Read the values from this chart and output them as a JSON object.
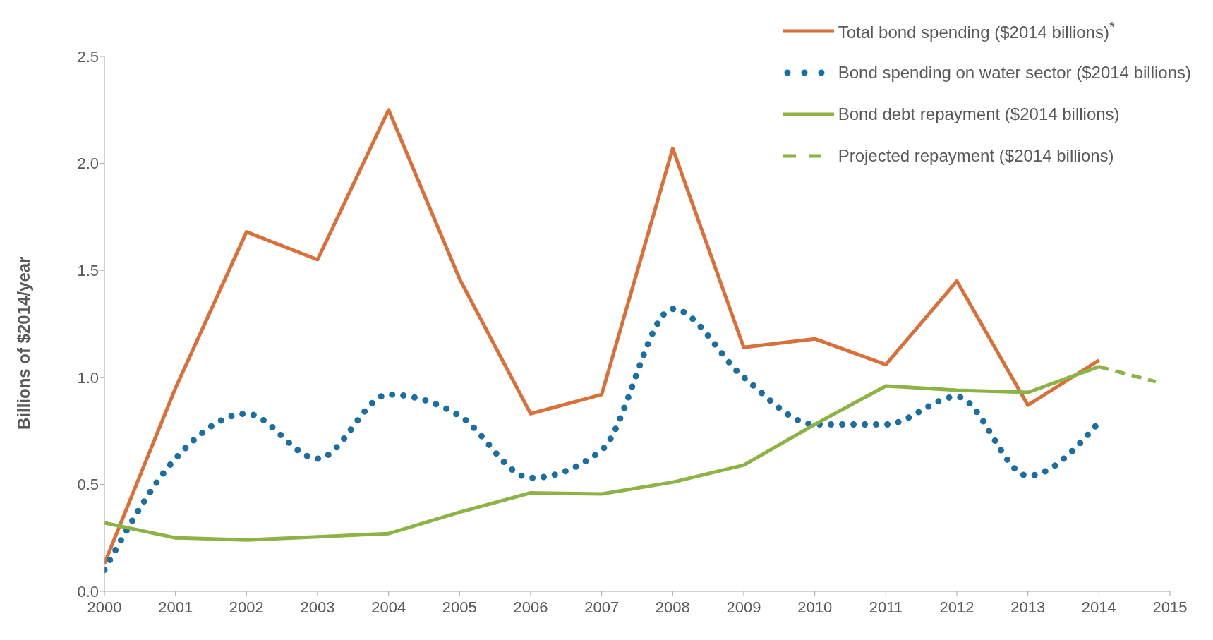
{
  "chart_data": {
    "type": "line",
    "ylabel": "Billions  of $2014/year",
    "x": [
      2000,
      2001,
      2002,
      2003,
      2004,
      2005,
      2006,
      2007,
      2008,
      2009,
      2010,
      2011,
      2012,
      2013,
      2014
    ],
    "series": [
      {
        "name": "Total bond spending ($2014 billions)$^{*}$",
        "color": "#d9703a",
        "line_style": "solid",
        "values": [
          0.13,
          0.95,
          1.68,
          1.55,
          2.25,
          1.46,
          0.83,
          0.92,
          2.07,
          1.14,
          1.18,
          1.06,
          1.45,
          0.87,
          1.08
        ]
      },
      {
        "name": "Bond spending on water sector ($2014 billions)",
        "color": "#1a6ea0",
        "line_style": "dotted",
        "values": [
          0.1,
          0.62,
          0.83,
          0.62,
          0.92,
          0.82,
          0.53,
          0.66,
          1.32,
          1.0,
          0.78,
          0.78,
          0.91,
          0.54,
          0.79
        ]
      },
      {
        "name": "Bond debt repayment ($2014 billions)",
        "color": "#8db346",
        "line_style": "solid",
        "values": [
          0.32,
          0.25,
          0.24,
          0.255,
          0.27,
          0.37,
          0.46,
          0.455,
          0.51,
          0.59,
          0.78,
          0.96,
          0.94,
          0.93,
          1.05
        ]
      },
      {
        "name": "Projected repayment ($2014 billions)",
        "color": "#8db346",
        "line_style": "dashed",
        "x": [
          2014,
          2014.8
        ],
        "values": [
          1.05,
          0.98
        ]
      }
    ],
    "xlim": [
      2000,
      2015
    ],
    "xticks": [
      2000,
      2001,
      2002,
      2003,
      2004,
      2005,
      2006,
      2007,
      2008,
      2009,
      2010,
      2011,
      2012,
      2013,
      2014,
      2015
    ],
    "ylim": [
      0,
      2.5
    ],
    "yticks": [
      {
        "value": 0,
        "label": "0.0"
      },
      {
        "value": 0.5,
        "label": "0.5"
      },
      {
        "value": 1,
        "label": "1.0"
      },
      {
        "value": 1.5,
        "label": "1.5"
      },
      {
        "value": 2,
        "label": "2.0"
      },
      {
        "value": 2.5,
        "label": "2.5"
      }
    ],
    "grid": false,
    "legend": "top right",
    "marker": "none"
  }
}
